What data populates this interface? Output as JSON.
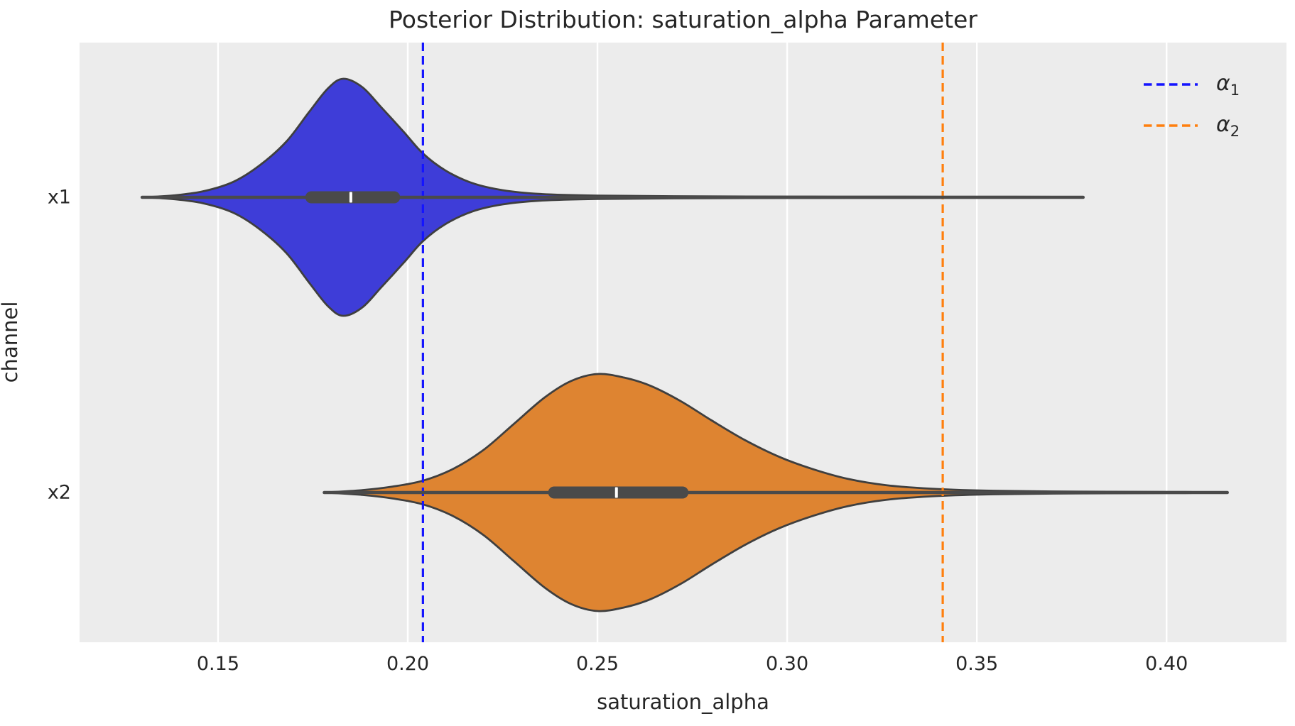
{
  "title": "Posterior Distribution: saturation_alpha Parameter",
  "axes": {
    "xlabel": "saturation_alpha",
    "ylabel": "channel",
    "x_tick_labels": [
      "0.15",
      "0.20",
      "0.25",
      "0.30",
      "0.35",
      "0.40"
    ],
    "y_tick_labels": [
      "x1",
      "x2"
    ]
  },
  "legend": {
    "position": "upper right",
    "entries": [
      {
        "symbol": "α",
        "sub": "1",
        "color": "#1414FF",
        "dash": true
      },
      {
        "symbol": "α",
        "sub": "2",
        "color": "#FF7F0E",
        "dash": true
      }
    ]
  },
  "style": {
    "axes_background": "#ECECEC",
    "grid_color": "#FFFFFF",
    "violin_edge_color": "#3F3F3F",
    "inner_box_color": "#4A4A4A",
    "median_tick_color": "#FFFFFF",
    "text_color": "#262626"
  },
  "chart_data": {
    "type": "violin",
    "orientation": "horizontal",
    "title": "Posterior Distribution: saturation_alpha Parameter",
    "xlabel": "saturation_alpha",
    "ylabel": "channel",
    "categories": [
      "x1",
      "x2"
    ],
    "x_range": [
      0.1135,
      0.4316
    ],
    "x_ticks": [
      0.15,
      0.2,
      0.25,
      0.3,
      0.35,
      0.4
    ],
    "grid": true,
    "legend_position": "upper right",
    "series": [
      {
        "name": "x1",
        "fill_color": "#3E3DD8",
        "stats": {
          "min": 0.13,
          "whisker_low": 0.136,
          "q1": 0.173,
          "median": 0.185,
          "q3": 0.198,
          "whisker_high": 0.2215,
          "max": 0.378,
          "peak": 0.182
        },
        "profile": [
          [
            0.13,
            0.0
          ],
          [
            0.138,
            0.015
          ],
          [
            0.146,
            0.05
          ],
          [
            0.154,
            0.13
          ],
          [
            0.161,
            0.27
          ],
          [
            0.168,
            0.47
          ],
          [
            0.174,
            0.72
          ],
          [
            0.179,
            0.92
          ],
          [
            0.183,
            1.0
          ],
          [
            0.188,
            0.93
          ],
          [
            0.193,
            0.76
          ],
          [
            0.199,
            0.55
          ],
          [
            0.204,
            0.37
          ],
          [
            0.21,
            0.225
          ],
          [
            0.217,
            0.12
          ],
          [
            0.225,
            0.06
          ],
          [
            0.235,
            0.028
          ],
          [
            0.25,
            0.014
          ],
          [
            0.27,
            0.009
          ],
          [
            0.3,
            0.006
          ],
          [
            0.33,
            0.005
          ],
          [
            0.36,
            0.004
          ],
          [
            0.372,
            0.003
          ],
          [
            0.378,
            0.0
          ]
        ]
      },
      {
        "name": "x2",
        "fill_color": "#DE8431",
        "stats": {
          "min": 0.178,
          "whisker_low": 0.186,
          "q1": 0.237,
          "median": 0.255,
          "q3": 0.274,
          "whisker_high": 0.322,
          "max": 0.416,
          "peak": 0.2495
        },
        "profile": [
          [
            0.178,
            0.0
          ],
          [
            0.188,
            0.02
          ],
          [
            0.196,
            0.05
          ],
          [
            0.204,
            0.1
          ],
          [
            0.212,
            0.2
          ],
          [
            0.22,
            0.36
          ],
          [
            0.228,
            0.58
          ],
          [
            0.236,
            0.8
          ],
          [
            0.243,
            0.94
          ],
          [
            0.25,
            1.0
          ],
          [
            0.257,
            0.97
          ],
          [
            0.264,
            0.9
          ],
          [
            0.272,
            0.77
          ],
          [
            0.28,
            0.61
          ],
          [
            0.289,
            0.44
          ],
          [
            0.298,
            0.3
          ],
          [
            0.307,
            0.195
          ],
          [
            0.316,
            0.115
          ],
          [
            0.326,
            0.062
          ],
          [
            0.338,
            0.032
          ],
          [
            0.352,
            0.016
          ],
          [
            0.37,
            0.009
          ],
          [
            0.39,
            0.006
          ],
          [
            0.405,
            0.004
          ],
          [
            0.416,
            0.0
          ]
        ]
      }
    ],
    "ref_lines": [
      {
        "name": "alpha_1",
        "value": 0.204,
        "color": "#1414FF",
        "style": "dashed"
      },
      {
        "name": "alpha_2",
        "value": 0.341,
        "color": "#FF7F0E",
        "style": "dashed"
      }
    ]
  }
}
